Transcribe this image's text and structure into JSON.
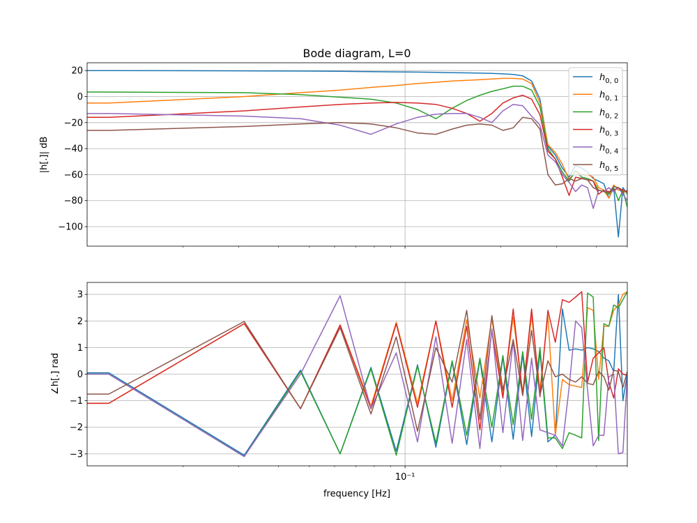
{
  "chart_data": [
    {
      "type": "line",
      "title": "Bode diagram, L=0",
      "xlabel": "",
      "ylabel": "|h[.]| dB",
      "xscale": "log",
      "xlim": [
        0.01,
        0.5
      ],
      "ylim": [
        -115,
        26
      ],
      "yticks": [
        20,
        0,
        -20,
        -40,
        -60,
        -80,
        -100
      ],
      "grid": true,
      "legend_position": "top-right",
      "series": [
        {
          "name": "h0,0",
          "color": "#1f77b4",
          "x": [
            0.01,
            0.0117,
            0.0312,
            0.0469,
            0.0625,
            0.0781,
            0.0938,
            0.1094,
            0.125,
            0.1406,
            0.1563,
            0.1719,
            0.1875,
            0.2031,
            0.2188,
            0.2344,
            0.25,
            0.2656,
            0.2813,
            0.2969,
            0.3125,
            0.3281,
            0.3438,
            0.3594,
            0.375,
            0.3906,
            0.4063,
            0.4219,
            0.4375,
            0.4531,
            0.4688,
            0.4844,
            0.5
          ],
          "values": [
            20,
            20,
            19.8,
            19.6,
            19.4,
            19.2,
            19,
            18.8,
            18.6,
            18.4,
            18.2,
            18,
            17.8,
            17.5,
            17,
            16,
            12,
            -2,
            -38,
            -45,
            -55,
            -62,
            -53,
            -55,
            -58,
            -63,
            -65,
            -67,
            -78,
            -70,
            -108,
            -70,
            -75
          ]
        },
        {
          "name": "h0,1",
          "color": "#ff7f0e",
          "x": [
            0.01,
            0.0117,
            0.0312,
            0.0469,
            0.0625,
            0.0781,
            0.0938,
            0.1094,
            0.125,
            0.1406,
            0.1563,
            0.1719,
            0.1875,
            0.2031,
            0.2188,
            0.2344,
            0.25,
            0.2656,
            0.2813,
            0.2969,
            0.3125,
            0.3281,
            0.3438,
            0.3594,
            0.375,
            0.3906,
            0.4063,
            0.4219,
            0.4375,
            0.4531,
            0.4688,
            0.4844,
            0.5
          ],
          "values": [
            -5,
            -5,
            0,
            3,
            5,
            7,
            8.5,
            10,
            11,
            12,
            12.5,
            13,
            13.5,
            14,
            14,
            13.5,
            10,
            -5,
            -37,
            -43,
            -52,
            -64,
            -57,
            -60,
            -60,
            -62,
            -70,
            -72,
            -78,
            -68,
            -72,
            -72,
            -74
          ]
        },
        {
          "name": "h0,2",
          "color": "#2ca02c",
          "x": [
            0.01,
            0.0117,
            0.0312,
            0.0469,
            0.0625,
            0.0781,
            0.0938,
            0.1094,
            0.125,
            0.1406,
            0.1563,
            0.1719,
            0.1875,
            0.2031,
            0.2188,
            0.2344,
            0.25,
            0.2656,
            0.2813,
            0.2969,
            0.3125,
            0.3281,
            0.3438,
            0.3594,
            0.375,
            0.3906,
            0.4063,
            0.4219,
            0.4375,
            0.4531,
            0.4688,
            0.4844,
            0.5
          ],
          "values": [
            3.5,
            3.5,
            3,
            1.5,
            -0.5,
            -2,
            -5,
            -10,
            -17,
            -9,
            -3,
            1,
            4,
            6,
            8,
            8,
            5,
            -8,
            -40,
            -48,
            -58,
            -65,
            -57,
            -62,
            -63,
            -65,
            -72,
            -73,
            -75,
            -70,
            -80,
            -72,
            -85
          ]
        },
        {
          "name": "h0,3",
          "color": "#d62728",
          "x": [
            0.01,
            0.0117,
            0.0312,
            0.0469,
            0.0625,
            0.0781,
            0.0938,
            0.1094,
            0.125,
            0.1406,
            0.1563,
            0.1719,
            0.1875,
            0.2031,
            0.2188,
            0.2344,
            0.25,
            0.2656,
            0.2813,
            0.2969,
            0.3125,
            0.3281,
            0.3438,
            0.3594,
            0.375,
            0.3906,
            0.4063,
            0.4219,
            0.4375,
            0.4531,
            0.4688,
            0.4844,
            0.5
          ],
          "values": [
            -16,
            -16,
            -11,
            -8,
            -6,
            -5,
            -4.5,
            -5,
            -6,
            -9,
            -13,
            -19,
            -13,
            -5,
            -1,
            1,
            -2,
            -14,
            -42,
            -48,
            -62,
            -76,
            -62,
            -63,
            -64,
            -65,
            -75,
            -72,
            -73,
            -72,
            -70,
            -72,
            -73
          ]
        },
        {
          "name": "h0,4",
          "color": "#9467bd",
          "x": [
            0.01,
            0.0117,
            0.0312,
            0.0469,
            0.0625,
            0.0781,
            0.0938,
            0.1094,
            0.125,
            0.1406,
            0.1563,
            0.1719,
            0.1875,
            0.2031,
            0.2188,
            0.2344,
            0.25,
            0.2656,
            0.2813,
            0.2969,
            0.3125,
            0.3281,
            0.3438,
            0.3594,
            0.375,
            0.3906,
            0.4063,
            0.4219,
            0.4375,
            0.4531,
            0.4688,
            0.4844,
            0.5
          ],
          "values": [
            -13,
            -13,
            -15,
            -17,
            -22,
            -29,
            -21,
            -16,
            -13.5,
            -13,
            -13,
            -16,
            -20,
            -11,
            -6,
            -7,
            -15,
            -22,
            -45,
            -50,
            -60,
            -66,
            -73,
            -68,
            -70,
            -86,
            -72,
            -73,
            -70,
            -73,
            -70,
            -75,
            -80
          ]
        },
        {
          "name": "h0,5",
          "color": "#8c564b",
          "x": [
            0.01,
            0.0117,
            0.0312,
            0.0469,
            0.0625,
            0.0781,
            0.0938,
            0.1094,
            0.125,
            0.1406,
            0.1563,
            0.1719,
            0.1875,
            0.2031,
            0.2188,
            0.2344,
            0.25,
            0.2656,
            0.2813,
            0.2969,
            0.3125,
            0.3281,
            0.3438,
            0.3594,
            0.375,
            0.3906,
            0.4063,
            0.4219,
            0.4375,
            0.4531,
            0.4688,
            0.4844,
            0.5
          ],
          "values": [
            -26,
            -26,
            -23,
            -21,
            -20,
            -21,
            -24,
            -28,
            -29,
            -25,
            -22,
            -21,
            -22,
            -26,
            -24,
            -16,
            -17,
            -25,
            -60,
            -68,
            -67,
            -63,
            -65,
            -63,
            -64,
            -70,
            -72,
            -73,
            -74,
            -69,
            -70,
            -74,
            -72
          ]
        }
      ]
    },
    {
      "type": "line",
      "title": "",
      "xlabel": "frequency [Hz]",
      "ylabel": "∠h[.] rad",
      "xscale": "log",
      "xlim": [
        0.01,
        0.5
      ],
      "ylim": [
        -3.45,
        3.45
      ],
      "yticks": [
        3,
        2,
        1,
        0,
        -1,
        -2,
        -3
      ],
      "xtick_label": "10⁻¹",
      "grid": true,
      "series": [
        {
          "name": "",
          "color": "#1f77b4",
          "x": [
            0.01,
            0.0117,
            0.0312,
            0.0469,
            0.0625,
            0.0781,
            0.0938,
            0.1094,
            0.125,
            0.1406,
            0.1563,
            0.1719,
            0.1875,
            0.2031,
            0.2188,
            0.2344,
            0.25,
            0.2656,
            0.2813,
            0.2969,
            0.3125,
            0.3281,
            0.3438,
            0.3594,
            0.375,
            0.3906,
            0.4063,
            0.4219,
            0.4375,
            0.4531,
            0.4688,
            0.4844,
            0.5
          ],
          "values": [
            0.05,
            0.05,
            -3.05,
            0.15,
            -3.0,
            0.25,
            -2.9,
            0.35,
            -2.75,
            0.45,
            -2.65,
            0.55,
            -2.55,
            0.65,
            -2.45,
            0.75,
            -2.35,
            0.85,
            -2.55,
            -2.3,
            2.45,
            0.9,
            0.95,
            0.9,
            1.0,
            0.95,
            0.85,
            0.6,
            0.5,
            0.1,
            3.0,
            -1.0,
            0.0
          ]
        },
        {
          "name": "",
          "color": "#ff7f0e",
          "x": [
            0.01,
            0.0117,
            0.0312,
            0.0469,
            0.0625,
            0.0781,
            0.0938,
            0.1094,
            0.125,
            0.1406,
            0.1563,
            0.1719,
            0.1875,
            0.2031,
            0.2188,
            0.2344,
            0.25,
            0.2656,
            0.2813,
            0.2969,
            0.3125,
            0.3281,
            0.3438,
            0.3594,
            0.375,
            0.3906,
            0.4063,
            0.4219,
            0.4375,
            0.4531,
            0.4688,
            0.4844,
            0.5
          ],
          "values": [
            -1.1,
            -1.1,
            1.9,
            -1.3,
            1.85,
            -1.2,
            1.95,
            -1.1,
            2.0,
            -1.0,
            2.05,
            -0.9,
            2.1,
            -0.8,
            2.15,
            -0.7,
            2.2,
            -0.6,
            2.2,
            -2.3,
            -0.2,
            -0.4,
            -0.45,
            -0.5,
            2.5,
            2.4,
            -0.2,
            1.8,
            1.8,
            2.4,
            2.6,
            3.0,
            3.1
          ]
        },
        {
          "name": "",
          "color": "#2ca02c",
          "x": [
            0.01,
            0.0117,
            0.0312,
            0.0469,
            0.0625,
            0.0781,
            0.0938,
            0.1094,
            0.125,
            0.1406,
            0.1563,
            0.1719,
            0.1875,
            0.2031,
            0.2188,
            0.2344,
            0.25,
            0.2656,
            0.2813,
            0.2969,
            0.3125,
            0.3281,
            0.3438,
            0.3594,
            0.375,
            0.3906,
            0.4063,
            0.4219,
            0.4375,
            0.4531,
            0.4688,
            0.4844,
            0.5
          ],
          "values": [
            0.0,
            0.0,
            -3.1,
            0.1,
            -3.0,
            0.2,
            -3.05,
            0.3,
            -2.6,
            0.5,
            -2.3,
            0.6,
            -2.0,
            0.7,
            -1.9,
            0.85,
            -1.7,
            1.0,
            -2.4,
            -2.4,
            -2.8,
            -2.2,
            -2.3,
            -2.4,
            3.05,
            2.9,
            -2.5,
            1.9,
            1.8,
            2.6,
            2.5,
            2.8,
            3.1
          ]
        },
        {
          "name": "",
          "color": "#d62728",
          "x": [
            0.01,
            0.0117,
            0.0312,
            0.0469,
            0.0625,
            0.0781,
            0.0938,
            0.1094,
            0.125,
            0.1406,
            0.1563,
            0.1719,
            0.1875,
            0.2031,
            0.2188,
            0.2344,
            0.25,
            0.2656,
            0.2813,
            0.2969,
            0.3125,
            0.3281,
            0.3438,
            0.3594,
            0.375,
            0.3906,
            0.4063,
            0.4219,
            0.4375,
            0.4531,
            0.4688,
            0.4844,
            0.5
          ],
          "values": [
            -1.1,
            -1.1,
            1.9,
            -1.3,
            1.85,
            -1.3,
            1.9,
            -1.25,
            2.0,
            -1.25,
            1.8,
            -2.1,
            1.65,
            -0.9,
            2.45,
            -0.8,
            2.45,
            -0.85,
            2.4,
            1.2,
            2.8,
            2.7,
            2.9,
            3.1,
            -0.3,
            0.6,
            0.8,
            1.0,
            -0.3,
            -0.9,
            0.2,
            0.0,
            -0.05
          ]
        },
        {
          "name": "",
          "color": "#9467bd",
          "x": [
            0.01,
            0.0117,
            0.0312,
            0.0469,
            0.0625,
            0.0781,
            0.0938,
            0.1094,
            0.125,
            0.1406,
            0.1563,
            0.1719,
            0.1875,
            0.2031,
            0.2188,
            0.2344,
            0.25,
            0.2656,
            0.2813,
            0.2969,
            0.3125,
            0.3281,
            0.3438,
            0.3594,
            0.375,
            0.3906,
            0.4063,
            0.4219,
            0.4375,
            0.4531,
            0.4688,
            0.4844,
            0.5
          ],
          "values": [
            0.0,
            0.0,
            -3.1,
            0.0,
            2.95,
            -1.3,
            0.8,
            -2.55,
            1.4,
            -2.6,
            1.3,
            -2.8,
            1.7,
            -2.2,
            1.25,
            -2.5,
            0.6,
            -2.1,
            -2.2,
            -2.3,
            -2.7,
            -0.5,
            2.0,
            1.75,
            -0.6,
            -2.7,
            -2.3,
            -2.3,
            -0.1,
            0.0,
            -3.0,
            -2.95,
            -0.05
          ]
        },
        {
          "name": "",
          "color": "#8c564b",
          "x": [
            0.01,
            0.0117,
            0.0312,
            0.0469,
            0.0625,
            0.0781,
            0.0938,
            0.1094,
            0.125,
            0.1406,
            0.1563,
            0.1719,
            0.1875,
            0.2031,
            0.2188,
            0.2344,
            0.25,
            0.2656,
            0.2813,
            0.2969,
            0.3125,
            0.3281,
            0.3438,
            0.3594,
            0.375,
            0.3906,
            0.4063,
            0.4219,
            0.4375,
            0.4531,
            0.4688,
            0.4844,
            0.5
          ],
          "values": [
            -0.75,
            -0.75,
            1.98,
            -1.3,
            1.75,
            -1.5,
            1.4,
            -2.15,
            1.0,
            -0.3,
            2.4,
            -1.7,
            2.2,
            -0.6,
            1.3,
            -0.8,
            1.65,
            -0.8,
            0.5,
            -0.1,
            0.0,
            -0.2,
            -0.3,
            -0.1,
            -0.35,
            -0.4,
            0.1,
            -0.1,
            -0.6,
            0.15,
            0.1,
            -0.5,
            0.1
          ]
        }
      ]
    }
  ],
  "legend": {
    "entries": [
      {
        "base": "h",
        "sub": "0, 0",
        "color": "#1f77b4"
      },
      {
        "base": "h",
        "sub": "0, 1",
        "color": "#ff7f0e"
      },
      {
        "base": "h",
        "sub": "0, 2",
        "color": "#2ca02c"
      },
      {
        "base": "h",
        "sub": "0, 3",
        "color": "#d62728"
      },
      {
        "base": "h",
        "sub": "0, 4",
        "color": "#9467bd"
      },
      {
        "base": "h",
        "sub": "0, 5",
        "color": "#8c564b"
      }
    ]
  }
}
